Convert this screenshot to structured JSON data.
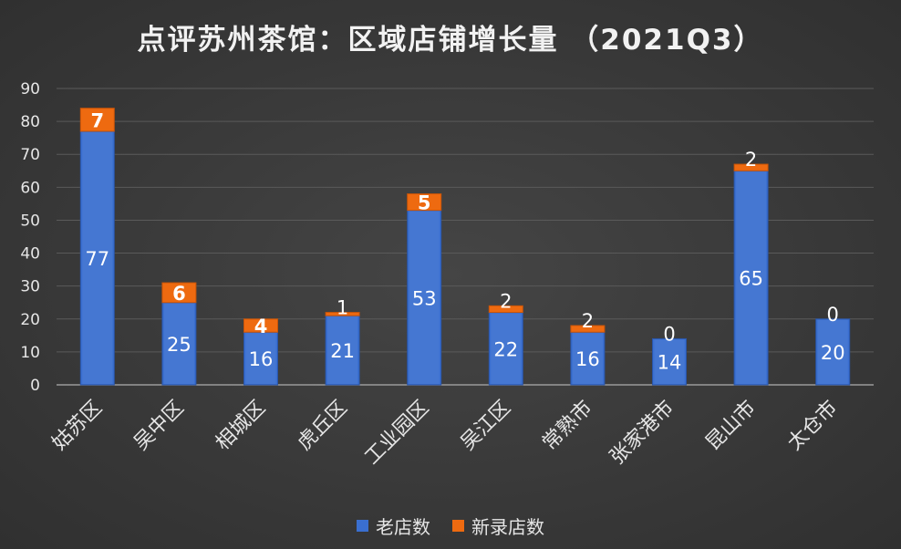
{
  "chart_data": {
    "type": "bar",
    "stacked": true,
    "title": "点评苏州茶馆：区域店铺增长量 （2021Q3）",
    "categories": [
      "姑苏区",
      "吴中区",
      "相城区",
      "虎丘区",
      "工业园区",
      "吴江区",
      "常熟市",
      "张家港市",
      "昆山市",
      "太仓市"
    ],
    "series": [
      {
        "name": "老店数",
        "color": "#3a6fd0",
        "values": [
          77,
          25,
          16,
          21,
          53,
          22,
          16,
          14,
          65,
          20
        ]
      },
      {
        "name": "新录店数",
        "color": "#ee6a10",
        "values": [
          7,
          6,
          4,
          1,
          5,
          2,
          2,
          0,
          2,
          0
        ]
      }
    ],
    "ylim": [
      0,
      90
    ],
    "yticks": [
      0,
      10,
      20,
      30,
      40,
      50,
      60,
      70,
      80,
      90
    ],
    "grid": true,
    "legend_position": "bottom",
    "xlabel": "",
    "ylabel": ""
  }
}
